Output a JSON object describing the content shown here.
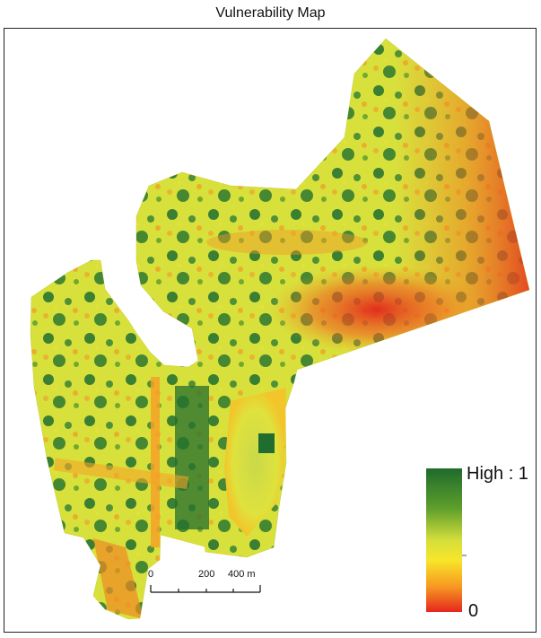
{
  "title": "Vulnerability Map",
  "legend": {
    "high_label": "High : 1",
    "low_label": "0",
    "colors": [
      "#1e6b2c",
      "#6aa52c",
      "#d7e03a",
      "#f7e52b",
      "#f79a22",
      "#e52a1f"
    ]
  },
  "scale_bar": {
    "labels": [
      "0",
      "200",
      "400 m"
    ]
  }
}
